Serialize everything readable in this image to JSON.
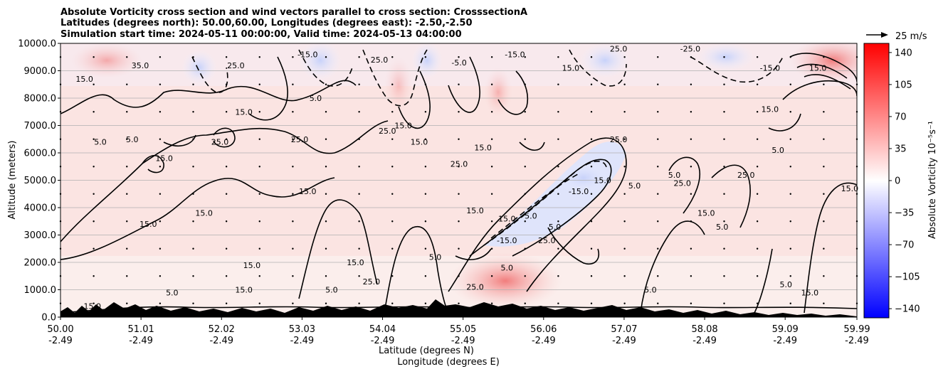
{
  "chart_data": {
    "type": "heatmap",
    "title_lines": [
      "Absolute Vorticity cross section and wind vectors parallel to cross section: CrosssectionA",
      "Latitudes (degrees north): 50.00,60.00, Longitudes (degrees east): -2.50,-2.50",
      "Simulation start time: 2024-05-11 00:00:00, Valid time: 2024-05-13 04:00:00"
    ],
    "ylabel": "Altitude (meters)",
    "xlabel_lines": [
      "Latitude (degrees N)",
      "Longitude (degrees E)"
    ],
    "x_tick_lat": [
      "50.00",
      "51.01",
      "52.02",
      "53.03",
      "54.04",
      "55.05",
      "56.06",
      "57.07",
      "58.08",
      "59.09",
      "59.99"
    ],
    "x_tick_lon": [
      "-2.49",
      "-2.49",
      "-2.49",
      "-2.49",
      "-2.49",
      "-2.49",
      "-2.49",
      "-2.49",
      "-2.49",
      "-2.49",
      "-2.49"
    ],
    "x_tick_values": [
      50.0,
      51.01,
      52.02,
      53.03,
      54.04,
      55.05,
      56.06,
      57.07,
      58.08,
      59.09,
      59.99
    ],
    "xlim": [
      50.0,
      59.99
    ],
    "y_ticks": [
      "0.0",
      "1000.0",
      "2000.0",
      "3000.0",
      "4000.0",
      "5000.0",
      "6000.0",
      "7000.0",
      "8000.0",
      "9000.0",
      "10000.0"
    ],
    "y_tick_values": [
      0,
      1000,
      2000,
      3000,
      4000,
      5000,
      6000,
      7000,
      8000,
      9000,
      10000
    ],
    "ylim": [
      0,
      10000
    ],
    "grid": "horizontal",
    "colorbar": {
      "label": "Absolute Vorticity 10⁻⁵s⁻¹",
      "ticks": [
        "140",
        "105",
        "70",
        "35",
        "0",
        "−35",
        "−70",
        "−105",
        "−140"
      ],
      "tick_values": [
        140,
        105,
        70,
        35,
        0,
        -35,
        -70,
        -105,
        -140
      ],
      "range": [
        -150,
        150
      ],
      "colors": [
        "#0000ff",
        "#ffffff",
        "#ff0000"
      ]
    },
    "quiver_key": "25 m/s",
    "contour_labels": [
      {
        "lat": 50.5,
        "alt": 6400,
        "text": "5.0"
      },
      {
        "lat": 50.9,
        "alt": 6500,
        "text": "5.0"
      },
      {
        "lat": 51.3,
        "alt": 5800,
        "text": "15.0"
      },
      {
        "lat": 51.8,
        "alt": 3800,
        "text": "15.0"
      },
      {
        "lat": 51.1,
        "alt": 3400,
        "text": "15.0"
      },
      {
        "lat": 52.0,
        "alt": 6400,
        "text": "25.0"
      },
      {
        "lat": 52.3,
        "alt": 7500,
        "text": "15.0"
      },
      {
        "lat": 52.4,
        "alt": 1900,
        "text": "15.0"
      },
      {
        "lat": 53.1,
        "alt": 4600,
        "text": "15.0"
      },
      {
        "lat": 53.0,
        "alt": 6500,
        "text": "25.0"
      },
      {
        "lat": 53.2,
        "alt": 8000,
        "text": "5.0"
      },
      {
        "lat": 53.7,
        "alt": 2000,
        "text": "15.0"
      },
      {
        "lat": 53.9,
        "alt": 1300,
        "text": "25.0"
      },
      {
        "lat": 54.1,
        "alt": 6800,
        "text": "25.0"
      },
      {
        "lat": 54.3,
        "alt": 7000,
        "text": "15.0"
      },
      {
        "lat": 54.5,
        "alt": 6400,
        "text": "15.0"
      },
      {
        "lat": 54.7,
        "alt": 2200,
        "text": "5.0"
      },
      {
        "lat": 55.0,
        "alt": 5600,
        "text": "25.0"
      },
      {
        "lat": 55.3,
        "alt": 6200,
        "text": "15.0"
      },
      {
        "lat": 55.2,
        "alt": 3900,
        "text": "15.0"
      },
      {
        "lat": 55.6,
        "alt": 3600,
        "text": "15.0"
      },
      {
        "lat": 55.9,
        "alt": 3700,
        "text": "5.0"
      },
      {
        "lat": 55.6,
        "alt": 2800,
        "text": "-15.0"
      },
      {
        "lat": 55.6,
        "alt": 1800,
        "text": "5.0"
      },
      {
        "lat": 55.2,
        "alt": 1100,
        "text": "25.0"
      },
      {
        "lat": 56.1,
        "alt": 2800,
        "text": "25.0"
      },
      {
        "lat": 56.5,
        "alt": 4600,
        "text": "-15.0"
      },
      {
        "lat": 56.2,
        "alt": 3300,
        "text": "5.0"
      },
      {
        "lat": 56.8,
        "alt": 5000,
        "text": "15.0"
      },
      {
        "lat": 57.2,
        "alt": 4800,
        "text": "5.0"
      },
      {
        "lat": 57.0,
        "alt": 6500,
        "text": "25.0"
      },
      {
        "lat": 57.4,
        "alt": 1000,
        "text": "5.0"
      },
      {
        "lat": 57.7,
        "alt": 5200,
        "text": "5.0"
      },
      {
        "lat": 57.8,
        "alt": 4900,
        "text": "25.0"
      },
      {
        "lat": 58.1,
        "alt": 3800,
        "text": "15.0"
      },
      {
        "lat": 58.3,
        "alt": 3300,
        "text": "5.0"
      },
      {
        "lat": 58.6,
        "alt": 5200,
        "text": "25.0"
      },
      {
        "lat": 58.9,
        "alt": 7600,
        "text": "15.0"
      },
      {
        "lat": 59.0,
        "alt": 6100,
        "text": "5.0"
      },
      {
        "lat": 59.1,
        "alt": 1200,
        "text": "5.0"
      },
      {
        "lat": 59.4,
        "alt": 900,
        "text": "15.0"
      },
      {
        "lat": 59.9,
        "alt": 4700,
        "text": "15.0"
      },
      {
        "lat": 59.5,
        "alt": 9100,
        "text": "15.0"
      },
      {
        "lat": 58.9,
        "alt": 9100,
        "text": "-15.0"
      },
      {
        "lat": 57.9,
        "alt": 9800,
        "text": "-25.0"
      },
      {
        "lat": 57.0,
        "alt": 9800,
        "text": "25.0"
      },
      {
        "lat": 56.4,
        "alt": 9100,
        "text": "15.0"
      },
      {
        "lat": 55.7,
        "alt": 9600,
        "text": "-15.0"
      },
      {
        "lat": 55.0,
        "alt": 9300,
        "text": "-5.0"
      },
      {
        "lat": 54.0,
        "alt": 9400,
        "text": "25.0"
      },
      {
        "lat": 53.1,
        "alt": 9600,
        "text": "-15.0"
      },
      {
        "lat": 52.2,
        "alt": 9200,
        "text": "25.0"
      },
      {
        "lat": 51.0,
        "alt": 9200,
        "text": "35.0"
      },
      {
        "lat": 50.3,
        "alt": 8700,
        "text": "15.0"
      },
      {
        "lat": 51.4,
        "alt": 900,
        "text": "5.0"
      },
      {
        "lat": 52.3,
        "alt": 1000,
        "text": "15.0"
      },
      {
        "lat": 53.4,
        "alt": 1000,
        "text": "5.0"
      },
      {
        "lat": 50.4,
        "alt": 400,
        "text": "15.0"
      }
    ]
  }
}
